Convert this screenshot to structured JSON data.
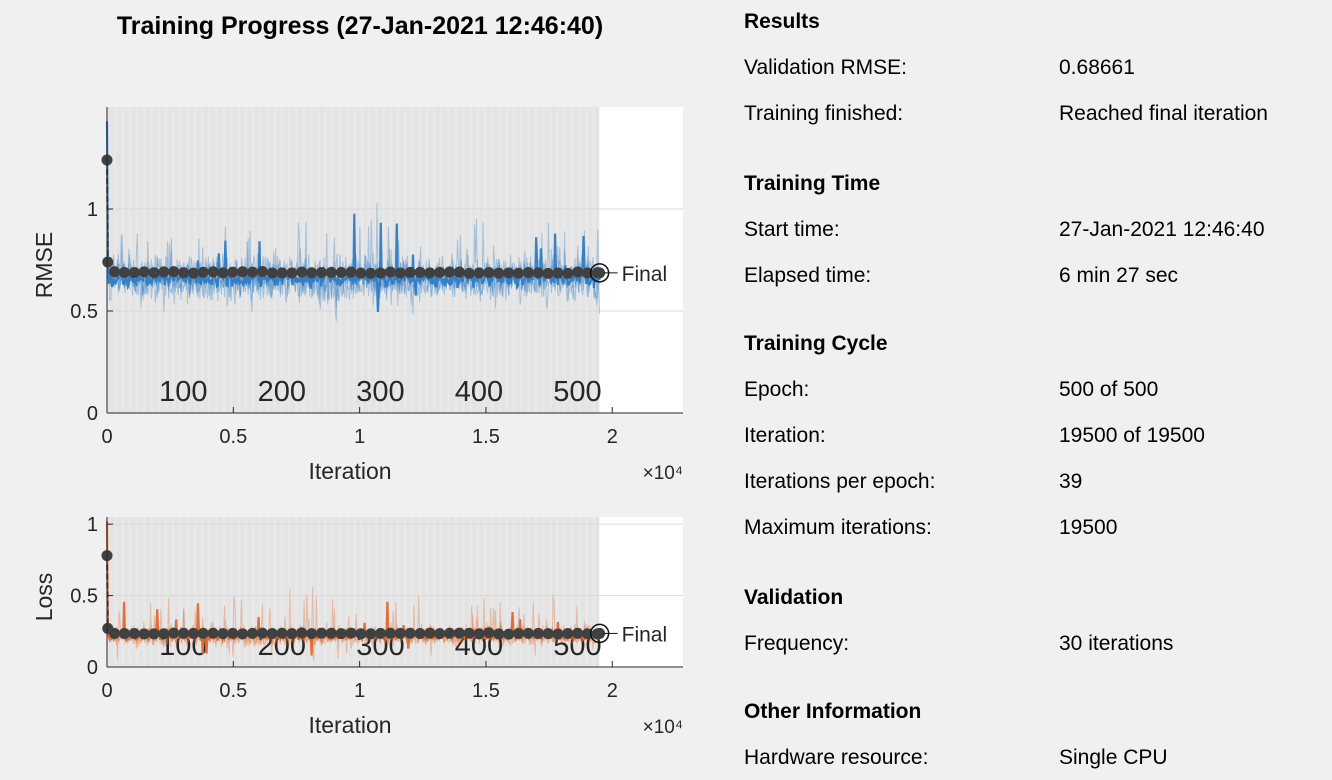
{
  "title": "Training Progress (27-Jan-2021 12:46:40)",
  "colors": {
    "rmse_series": "#2e7cc4",
    "loss_series": "#e0692f",
    "validation": "#404040",
    "plot_area": "#ffffff",
    "epoch_band": "#e8e8e8",
    "background": "#f0f0f0"
  },
  "chart_data": [
    {
      "type": "line",
      "name": "rmse-plot",
      "ylabel": "RMSE",
      "xlabel": "Iteration",
      "exponent_label": "×10⁴",
      "xlim": [
        0,
        22800
      ],
      "ylim": [
        0,
        1.5
      ],
      "xticks": [
        0,
        5000,
        10000,
        15000,
        20000
      ],
      "xtick_labels": [
        "0",
        "0.5",
        "1",
        "1.5",
        "2"
      ],
      "yticks": [
        0,
        0.5,
        1
      ],
      "ytick_labels": [
        "0",
        "0.5",
        "1"
      ],
      "epoch_labels": [
        "100",
        "200",
        "300",
        "400",
        "500"
      ],
      "epoch_iterations": [
        3900,
        7800,
        11700,
        15600,
        19500
      ],
      "final_label": "Final",
      "training": {
        "start": 1.43,
        "mean": 0.66,
        "spread": 0.095,
        "spike": 0.3
      },
      "validation": [
        [
          0,
          1.24
        ],
        [
          30,
          0.74
        ],
        [
          300,
          0.69
        ],
        [
          19500,
          0.687
        ]
      ],
      "final_value": 0.687,
      "final_iteration": 19500
    },
    {
      "type": "line",
      "name": "loss-plot",
      "ylabel": "Loss",
      "xlabel": "Iteration",
      "exponent_label": "×10⁴",
      "xlim": [
        0,
        22800
      ],
      "ylim": [
        0,
        1.05
      ],
      "xticks": [
        0,
        5000,
        10000,
        15000,
        20000
      ],
      "xtick_labels": [
        "0",
        "0.5",
        "1",
        "1.5",
        "2"
      ],
      "yticks": [
        0,
        0.5,
        1
      ],
      "ytick_labels": [
        "0",
        "0.5",
        "1"
      ],
      "epoch_labels": [
        "100",
        "200",
        "300",
        "400",
        "500"
      ],
      "epoch_iterations": [
        3900,
        7800,
        11700,
        15600,
        19500
      ],
      "final_label": "Final",
      "training": {
        "start": 1.02,
        "mean": 0.22,
        "spread": 0.06,
        "spike": 0.3
      },
      "validation": [
        [
          0,
          0.78
        ],
        [
          30,
          0.27
        ],
        [
          300,
          0.235
        ],
        [
          19500,
          0.235
        ]
      ],
      "final_value": 0.235,
      "final_iteration": 19500
    }
  ],
  "info": {
    "results": {
      "header": "Results",
      "validation_rmse_label": "Validation RMSE:",
      "validation_rmse_value": "0.68661",
      "training_finished_label": "Training finished:",
      "training_finished_value": "Reached final iteration"
    },
    "time": {
      "header": "Training Time",
      "start_time_label": "Start time:",
      "start_time_value": "27-Jan-2021 12:46:40",
      "elapsed_label": "Elapsed time:",
      "elapsed_value": "6 min 27 sec"
    },
    "cycle": {
      "header": "Training Cycle",
      "epoch_label": "Epoch:",
      "epoch_value": "500 of 500",
      "iteration_label": "Iteration:",
      "iteration_value": "19500 of 19500",
      "iter_per_epoch_label": "Iterations per epoch:",
      "iter_per_epoch_value": "39",
      "max_iter_label": "Maximum iterations:",
      "max_iter_value": "19500"
    },
    "validation": {
      "header": "Validation",
      "frequency_label": "Frequency:",
      "frequency_value": "30 iterations"
    },
    "other": {
      "header": "Other Information",
      "hardware_label": "Hardware resource:",
      "hardware_value": "Single CPU"
    }
  }
}
